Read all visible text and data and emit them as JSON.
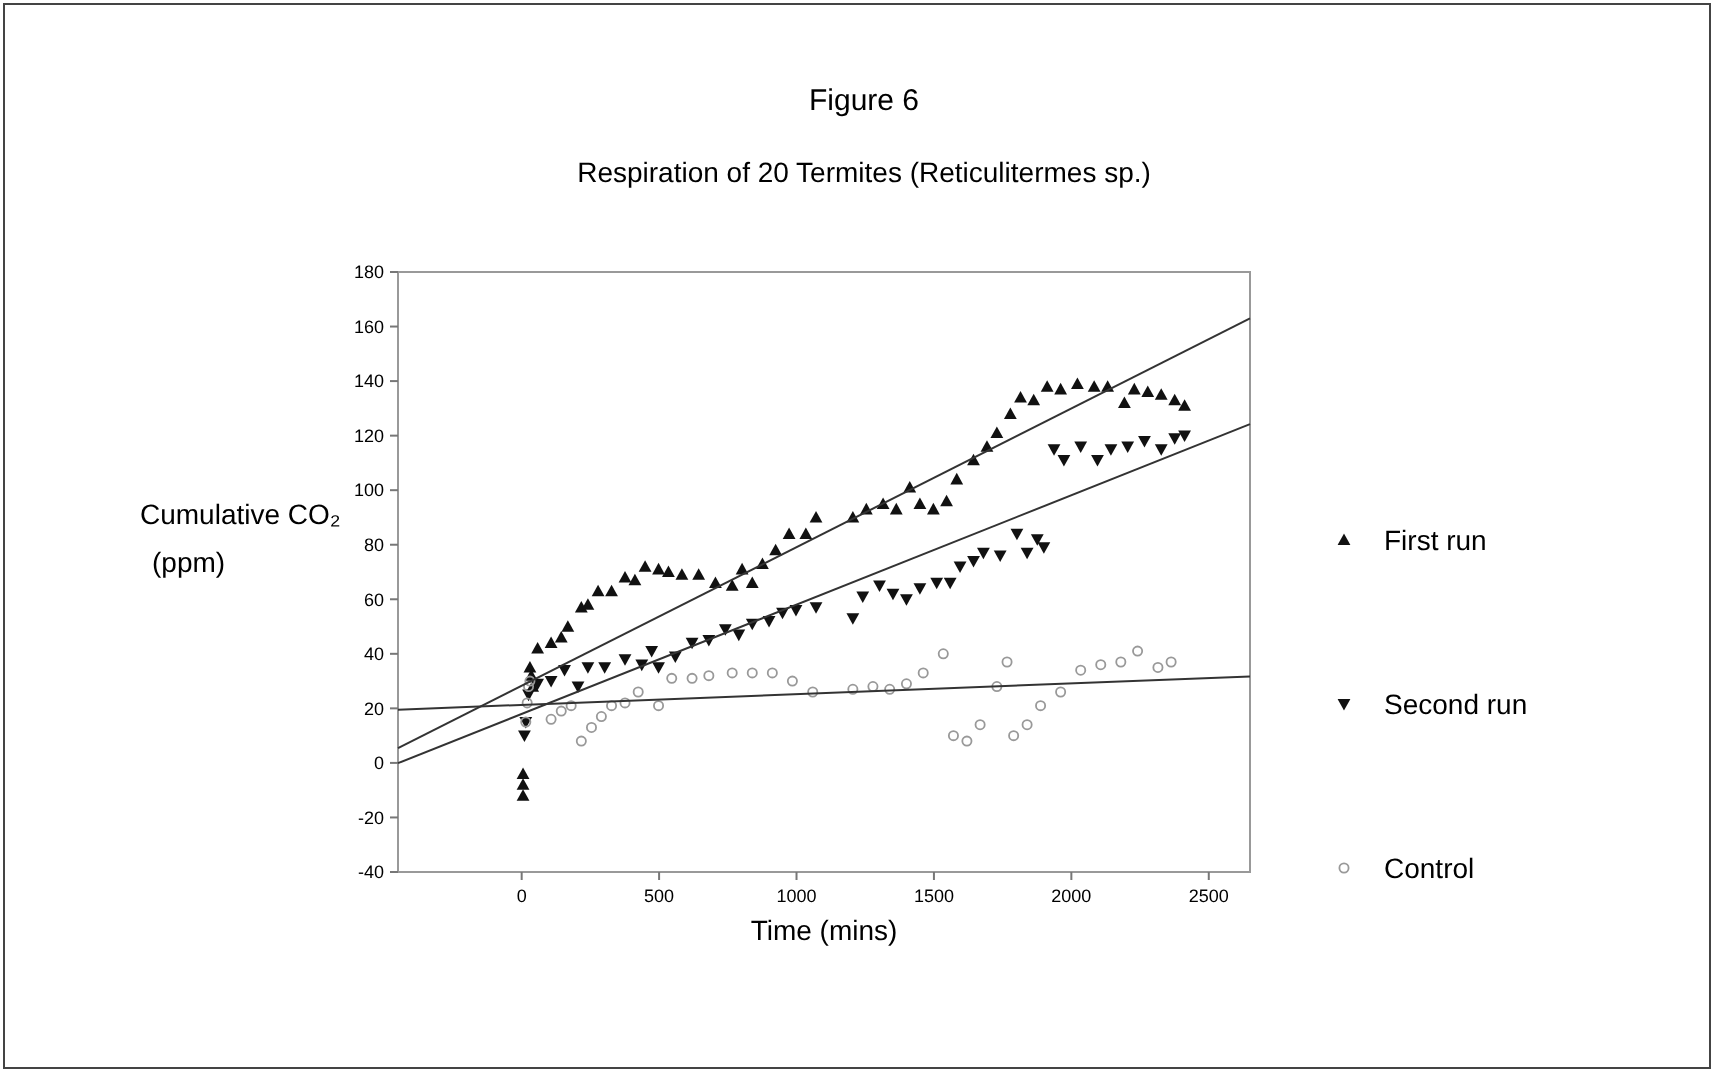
{
  "chart_data": {
    "type": "scatter",
    "title": "Figure 6",
    "subtitle": "Respiration of 20 Termites (Reticulitermes sp.)",
    "xlabel": "Time (mins)",
    "ylabel": "Cumulative CO₂ (ppm)",
    "xlim": [
      -450,
      2650
    ],
    "xticks": [
      0,
      500,
      1000,
      1500,
      2000,
      2500
    ],
    "ylim": [
      -40,
      180
    ],
    "yticks": [
      -40,
      -20,
      0,
      20,
      40,
      60,
      80,
      100,
      120,
      140,
      160,
      180
    ],
    "grid": false,
    "legend": "right",
    "series": [
      {
        "name": "First run",
        "color": "#111111",
        "marker": "triangle",
        "x": [
          5,
          5,
          5,
          30,
          35,
          40,
          58,
          107,
          144,
          168,
          217,
          241,
          278,
          327,
          376,
          412,
          449,
          498,
          534,
          583,
          644,
          705,
          766,
          802,
          839,
          876,
          924,
          973,
          1034,
          1071,
          1205,
          1254,
          1315,
          1363,
          1412,
          1449,
          1498,
          1546,
          1583,
          1644,
          1693,
          1729,
          1778,
          1815,
          1863,
          1912,
          1961,
          2022,
          2083,
          2132,
          2193,
          2229,
          2278,
          2327,
          2376,
          2412
        ],
        "values": [
          -12,
          -8,
          -4,
          35,
          32,
          28,
          42,
          44,
          46,
          50,
          57,
          58,
          63,
          63,
          68,
          67,
          72,
          71,
          70,
          69,
          69,
          66,
          65,
          71,
          66,
          73,
          78,
          84,
          84,
          90,
          90,
          93,
          95,
          93,
          101,
          95,
          93,
          96,
          104,
          111,
          116,
          121,
          128,
          134,
          133,
          138,
          137,
          139,
          138,
          138,
          132,
          137,
          136,
          135,
          133,
          131
        ]
      },
      {
        "name": "Second run",
        "color": "#111111",
        "marker": "triangle-down",
        "x": [
          10,
          15,
          25,
          58,
          107,
          156,
          205,
          241,
          302,
          376,
          437,
          473,
          498,
          559,
          620,
          681,
          741,
          790,
          839,
          900,
          949,
          998,
          1071,
          1205,
          1241,
          1302,
          1351,
          1400,
          1449,
          1510,
          1559,
          1595,
          1644,
          1680,
          1741,
          1802,
          1839,
          1876,
          1900,
          1937,
          1973,
          2034,
          2095,
          2144,
          2205,
          2266,
          2327,
          2376,
          2412
        ],
        "values": [
          10,
          15,
          25,
          29,
          30,
          34,
          28,
          35,
          35,
          38,
          36,
          41,
          35,
          39,
          44,
          45,
          49,
          47,
          51,
          52,
          55,
          56,
          57,
          53,
          61,
          65,
          62,
          60,
          64,
          66,
          66,
          72,
          74,
          77,
          76,
          84,
          77,
          82,
          79,
          115,
          111,
          116,
          111,
          115,
          116,
          118,
          115,
          119,
          120
        ]
      },
      {
        "name": "Control",
        "color": "#999999",
        "marker": "circle",
        "x": [
          15,
          20,
          25,
          30,
          107,
          144,
          180,
          217,
          254,
          290,
          327,
          376,
          424,
          498,
          546,
          620,
          681,
          766,
          839,
          912,
          985,
          1059,
          1205,
          1278,
          1339,
          1400,
          1461,
          1534,
          1571,
          1620,
          1668,
          1729,
          1766,
          1790,
          1839,
          1888,
          1961,
          2034,
          2107,
          2180,
          2241,
          2315,
          2363
        ],
        "values": [
          15,
          22,
          28,
          30,
          16,
          19,
          21,
          8,
          13,
          17,
          21,
          22,
          26,
          21,
          31,
          31,
          32,
          33,
          33,
          33,
          30,
          26,
          27,
          28,
          27,
          29,
          33,
          40,
          10,
          8,
          14,
          28,
          37,
          10,
          14,
          21,
          26,
          34,
          36,
          37,
          41,
          35,
          37
        ]
      },
      {
        "type": "line",
        "color": "#333333",
        "marker": "none",
        "x": [
          -450,
          2650
        ],
        "values": [
          5.4,
          163
        ]
      },
      {
        "type": "line",
        "color": "#333333",
        "marker": "none",
        "x": [
          -450,
          2650
        ],
        "values": [
          -0.1,
          124.2
        ]
      },
      {
        "type": "line",
        "color": "#333333",
        "marker": "none",
        "x": [
          -450,
          2650
        ],
        "values": [
          19.5,
          31.7
        ]
      }
    ]
  }
}
